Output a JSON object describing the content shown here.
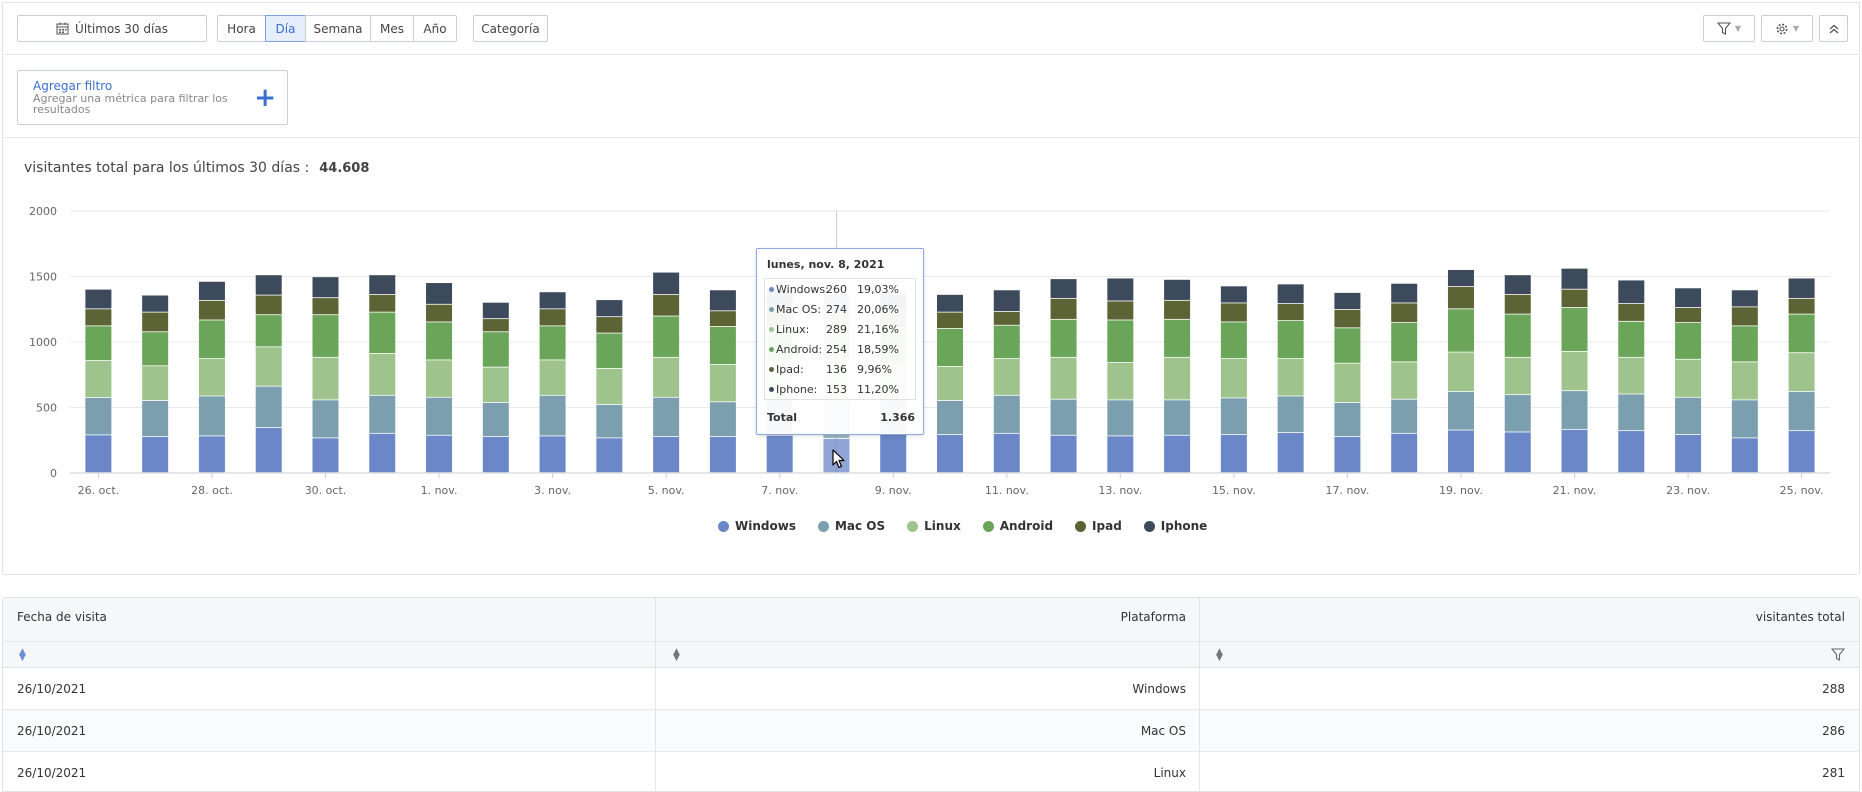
{
  "toolbar": {
    "date_range": "Últimos 30 días",
    "granularity": [
      "Hora",
      "Día",
      "Semana",
      "Mes",
      "Año"
    ],
    "active_granularity": "Día",
    "category": "Categoría"
  },
  "filter": {
    "title": "Agregar filtro",
    "subtitle": "Agregar una métrica para filtrar los resultados"
  },
  "summary": {
    "label": "visitantes total para los últimos 30 días :",
    "value": "44.608"
  },
  "chart_data": {
    "type": "bar",
    "stacked": true,
    "ylim": [
      0,
      2000
    ],
    "yticks": [
      0,
      500,
      1000,
      1500,
      2000
    ],
    "grid": true,
    "legend_position": "bottom-center",
    "categories": [
      "26. oct.",
      "27. oct.",
      "28. oct.",
      "29. oct.",
      "30. oct.",
      "31. oct.",
      "1. nov.",
      "2. nov.",
      "3. nov.",
      "4. nov.",
      "5. nov.",
      "6. nov.",
      "7. nov.",
      "8. nov.",
      "9. nov.",
      "10. nov.",
      "11. nov.",
      "12. nov.",
      "13. nov.",
      "14. nov.",
      "15. nov.",
      "16. nov.",
      "17. nov.",
      "18. nov.",
      "19. nov.",
      "20. nov.",
      "21. nov.",
      "22. nov.",
      "23. nov.",
      "24. nov.",
      "25. nov."
    ],
    "xtick_labels": [
      "26. oct.",
      "28. oct.",
      "30. oct.",
      "1. nov.",
      "3. nov.",
      "5. nov.",
      "7. nov.",
      "9. nov.",
      "11. nov.",
      "13. nov.",
      "15. nov.",
      "17. nov.",
      "19. nov.",
      "21. nov.",
      "23. nov.",
      "25. nov."
    ],
    "series": [
      {
        "name": "Windows",
        "color": "#6b87c7",
        "values": [
          288,
          275,
          280,
          345,
          265,
          300,
          285,
          275,
          280,
          265,
          275,
          275,
          285,
          260,
          290,
          290,
          300,
          285,
          280,
          285,
          290,
          305,
          275,
          300,
          325,
          310,
          330,
          320,
          290,
          265,
          320
        ]
      },
      {
        "name": "Mac OS",
        "color": "#7b9fae",
        "values": [
          286,
          275,
          305,
          315,
          290,
          290,
          290,
          260,
          310,
          255,
          300,
          265,
          280,
          274,
          270,
          260,
          290,
          275,
          275,
          270,
          280,
          280,
          260,
          260,
          295,
          285,
          295,
          280,
          285,
          290,
          300
        ]
      },
      {
        "name": "Linux",
        "color": "#9ec38c",
        "values": [
          281,
          265,
          285,
          300,
          325,
          320,
          285,
          270,
          270,
          275,
          305,
          285,
          280,
          289,
          270,
          260,
          280,
          320,
          285,
          325,
          300,
          285,
          300,
          285,
          300,
          285,
          300,
          280,
          290,
          290,
          295
        ]
      },
      {
        "name": "Android",
        "color": "#6aa55a",
        "values": [
          265,
          260,
          295,
          245,
          325,
          315,
          290,
          270,
          260,
          270,
          315,
          290,
          270,
          254,
          275,
          290,
          255,
          290,
          325,
          290,
          280,
          290,
          270,
          300,
          330,
          330,
          335,
          275,
          280,
          275,
          295
        ]
      },
      {
        "name": "Ipad",
        "color": "#5c6435",
        "values": [
          130,
          150,
          150,
          150,
          130,
          135,
          135,
          100,
          130,
          125,
          165,
          120,
          140,
          136,
          130,
          125,
          105,
          160,
          145,
          145,
          145,
          130,
          140,
          150,
          170,
          150,
          140,
          135,
          115,
          145,
          120
        ]
      },
      {
        "name": "Iphone",
        "color": "#3c4a5c",
        "values": [
          150,
          130,
          145,
          155,
          160,
          150,
          165,
          125,
          130,
          130,
          170,
          160,
          145,
          153,
          130,
          135,
          165,
          150,
          175,
          160,
          130,
          150,
          130,
          150,
          130,
          150,
          160,
          180,
          150,
          130,
          155
        ]
      }
    ]
  },
  "tooltip": {
    "title": "lunes, nov. 8, 2021",
    "rows": [
      {
        "name": "Windows:",
        "count": "260",
        "pct": "19,03%"
      },
      {
        "name": "Mac OS:",
        "count": "274",
        "pct": "20,06%"
      },
      {
        "name": "Linux:",
        "count": "289",
        "pct": "21,16%"
      },
      {
        "name": "Android:",
        "count": "254",
        "pct": "18,59%"
      },
      {
        "name": "Ipad:",
        "count": "136",
        "pct": "9,96%"
      },
      {
        "name": "Iphone:",
        "count": "153",
        "pct": "11,20%"
      }
    ],
    "total_label": "Total",
    "total_value": "1.366"
  },
  "table": {
    "columns": [
      "Fecha de visita",
      "Plataforma",
      "visitantes total"
    ],
    "rows": [
      {
        "date": "26/10/2021",
        "platform": "Windows",
        "visitors": "288"
      },
      {
        "date": "26/10/2021",
        "platform": "Mac OS",
        "visitors": "286"
      },
      {
        "date": "26/10/2021",
        "platform": "Linux",
        "visitors": "281"
      }
    ]
  }
}
